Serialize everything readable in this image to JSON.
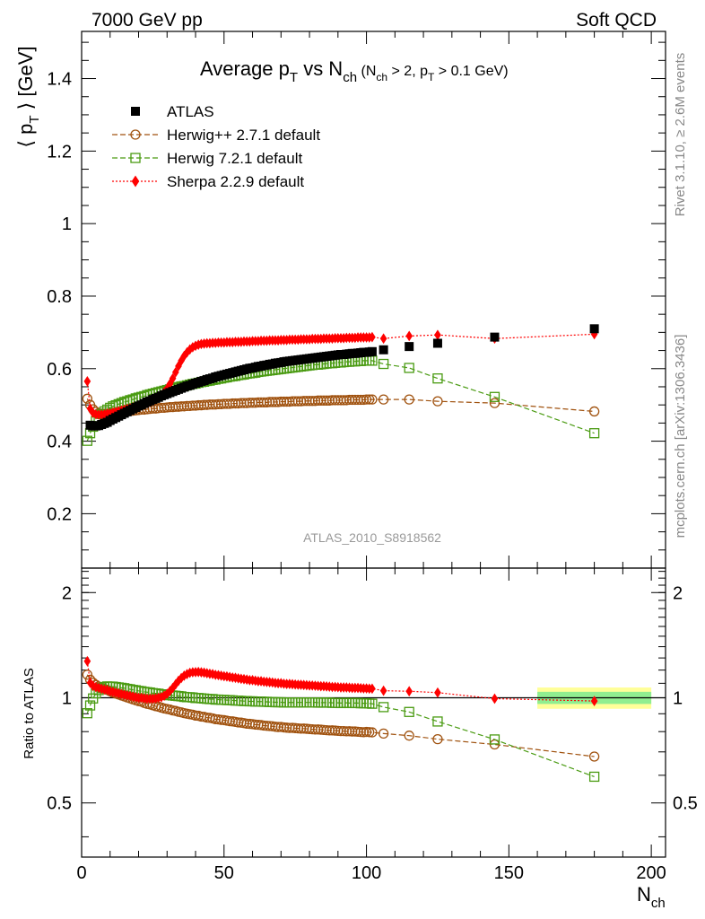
{
  "header": {
    "left": "7000 GeV pp",
    "right": "Soft QCD"
  },
  "side": {
    "rivet": "Rivet 3.1.10, ≥ 2.6M events",
    "mcplots": "mcplots.cern.ch [arXiv:1306.3436]"
  },
  "chart_data": [
    {
      "type": "scatter",
      "panel": "main",
      "title": {
        "main": "Average p",
        "main_sub": "T",
        "mid": " vs N",
        "mid_sub": "ch",
        "cond_open": " (N",
        "cond_sub1": "ch",
        "cond_mid": " > 2, p",
        "cond_sub2": "T",
        "cond_close": " > 0.1 GeV)"
      },
      "ylabel": {
        "pre": "⟨ p",
        "sub": "T",
        "post": " ⟩ [GeV]"
      },
      "watermark": "ATLAS_2010_S8918562",
      "xlim": [
        0,
        205
      ],
      "ylim": [
        0.05,
        1.53
      ],
      "yticks": [
        0.2,
        0.4,
        0.6,
        0.8,
        1,
        1.2,
        1.4
      ],
      "ytick_labels": [
        "0.2",
        "0.4",
        "0.6",
        "0.8",
        "1",
        "1.2",
        "1.4"
      ],
      "legend_position": "top-left",
      "series": [
        {
          "name": "ATLAS",
          "marker": "filled-square",
          "color": "#000000",
          "x": [
            3,
            4,
            5,
            6,
            7,
            8,
            9,
            10,
            11,
            12,
            13,
            14,
            15,
            16,
            17,
            18,
            19,
            20,
            21,
            22,
            23,
            24,
            25,
            26,
            27,
            28,
            29,
            30,
            31,
            32,
            33,
            34,
            35,
            36,
            37,
            38,
            39,
            40,
            41,
            42,
            43,
            44,
            45,
            46,
            47,
            48,
            49,
            50,
            51,
            52,
            53,
            54,
            55,
            56,
            57,
            58,
            59,
            60,
            61,
            62,
            63,
            64,
            65,
            66,
            67,
            68,
            69,
            70,
            71,
            72,
            73,
            74,
            75,
            76,
            77,
            78,
            79,
            80,
            81,
            82,
            83,
            84,
            85,
            86,
            87,
            88,
            89,
            90,
            91,
            92,
            93,
            94,
            95,
            96,
            97,
            98,
            99,
            100,
            101,
            102,
            106,
            115,
            125,
            145,
            180
          ],
          "y": [
            0.444,
            0.442,
            0.442,
            0.443,
            0.446,
            0.449,
            0.452,
            0.457,
            0.461,
            0.465,
            0.469,
            0.473,
            0.477,
            0.481,
            0.485,
            0.489,
            0.493,
            0.497,
            0.5,
            0.504,
            0.508,
            0.511,
            0.515,
            0.518,
            0.521,
            0.525,
            0.528,
            0.531,
            0.534,
            0.537,
            0.54,
            0.543,
            0.546,
            0.549,
            0.552,
            0.554,
            0.557,
            0.56,
            0.562,
            0.565,
            0.567,
            0.57,
            0.572,
            0.574,
            0.577,
            0.579,
            0.581,
            0.583,
            0.585,
            0.587,
            0.589,
            0.591,
            0.593,
            0.595,
            0.597,
            0.599,
            0.601,
            0.602,
            0.604,
            0.606,
            0.607,
            0.609,
            0.61,
            0.612,
            0.613,
            0.615,
            0.616,
            0.617,
            0.619,
            0.62,
            0.621,
            0.622,
            0.623,
            0.624,
            0.625,
            0.626,
            0.627,
            0.628,
            0.629,
            0.63,
            0.631,
            0.632,
            0.633,
            0.634,
            0.635,
            0.636,
            0.637,
            0.638,
            0.639,
            0.639,
            0.64,
            0.641,
            0.642,
            0.642,
            0.643,
            0.644,
            0.645,
            0.645,
            0.646,
            0.647,
            0.652,
            0.661,
            0.67,
            0.687,
            0.71
          ]
        },
        {
          "name": "Herwig++ 2.7.1 default",
          "marker": "open-circle",
          "color": "#a0520f",
          "dash": "6,3",
          "x": [
            2,
            3,
            4,
            5,
            6,
            7,
            8,
            9,
            10,
            11,
            12,
            13,
            14,
            15,
            16,
            17,
            18,
            19,
            20,
            21,
            22,
            23,
            24,
            25,
            26,
            27,
            28,
            29,
            30,
            31,
            32,
            33,
            34,
            35,
            36,
            37,
            38,
            39,
            40,
            41,
            42,
            43,
            44,
            45,
            46,
            47,
            48,
            49,
            50,
            51,
            52,
            53,
            54,
            55,
            56,
            57,
            58,
            59,
            60,
            61,
            62,
            63,
            64,
            65,
            66,
            67,
            68,
            69,
            70,
            71,
            72,
            73,
            74,
            75,
            76,
            77,
            78,
            79,
            80,
            81,
            82,
            83,
            84,
            85,
            86,
            87,
            88,
            89,
            90,
            91,
            92,
            93,
            94,
            95,
            96,
            97,
            98,
            99,
            100,
            101,
            102,
            106,
            115,
            125,
            145,
            180
          ],
          "y": [
            0.517,
            0.5,
            0.488,
            0.481,
            0.477,
            0.476,
            0.476,
            0.476,
            0.477,
            0.477,
            0.478,
            0.479,
            0.48,
            0.481,
            0.482,
            0.483,
            0.484,
            0.485,
            0.486,
            0.487,
            0.487,
            0.488,
            0.489,
            0.49,
            0.49,
            0.491,
            0.492,
            0.492,
            0.493,
            0.494,
            0.494,
            0.495,
            0.495,
            0.496,
            0.496,
            0.497,
            0.497,
            0.498,
            0.498,
            0.499,
            0.499,
            0.5,
            0.5,
            0.501,
            0.501,
            0.501,
            0.502,
            0.502,
            0.503,
            0.503,
            0.503,
            0.504,
            0.504,
            0.504,
            0.505,
            0.505,
            0.505,
            0.506,
            0.506,
            0.506,
            0.507,
            0.507,
            0.507,
            0.507,
            0.508,
            0.508,
            0.508,
            0.508,
            0.509,
            0.509,
            0.509,
            0.509,
            0.51,
            0.51,
            0.51,
            0.51,
            0.511,
            0.511,
            0.511,
            0.511,
            0.511,
            0.512,
            0.512,
            0.512,
            0.512,
            0.512,
            0.513,
            0.513,
            0.513,
            0.513,
            0.513,
            0.513,
            0.514,
            0.514,
            0.514,
            0.514,
            0.514,
            0.514,
            0.515,
            0.515,
            0.515,
            0.515,
            0.515,
            0.51,
            0.505,
            0.482
          ]
        },
        {
          "name": "Herwig 7.2.1 default",
          "marker": "open-square",
          "color": "#4a9b12",
          "dash": "6,3",
          "x": [
            2,
            3,
            4,
            5,
            6,
            7,
            8,
            9,
            10,
            11,
            12,
            13,
            14,
            15,
            16,
            17,
            18,
            19,
            20,
            21,
            22,
            23,
            24,
            25,
            26,
            27,
            28,
            29,
            30,
            31,
            32,
            33,
            34,
            35,
            36,
            37,
            38,
            39,
            40,
            41,
            42,
            43,
            44,
            45,
            46,
            47,
            48,
            49,
            50,
            51,
            52,
            53,
            54,
            55,
            56,
            57,
            58,
            59,
            60,
            61,
            62,
            63,
            64,
            65,
            66,
            67,
            68,
            69,
            70,
            71,
            72,
            73,
            74,
            75,
            76,
            77,
            78,
            79,
            80,
            81,
            82,
            83,
            84,
            85,
            86,
            87,
            88,
            89,
            90,
            91,
            92,
            93,
            94,
            95,
            96,
            97,
            98,
            99,
            100,
            101,
            102,
            106,
            115,
            125,
            145,
            180
          ],
          "y": [
            0.401,
            0.422,
            0.44,
            0.455,
            0.466,
            0.475,
            0.482,
            0.487,
            0.492,
            0.496,
            0.499,
            0.502,
            0.505,
            0.508,
            0.51,
            0.513,
            0.515,
            0.518,
            0.52,
            0.522,
            0.524,
            0.527,
            0.529,
            0.531,
            0.533,
            0.535,
            0.537,
            0.539,
            0.541,
            0.543,
            0.545,
            0.547,
            0.549,
            0.551,
            0.552,
            0.554,
            0.556,
            0.558,
            0.559,
            0.561,
            0.563,
            0.564,
            0.566,
            0.567,
            0.569,
            0.57,
            0.572,
            0.573,
            0.575,
            0.576,
            0.578,
            0.579,
            0.58,
            0.582,
            0.583,
            0.584,
            0.586,
            0.587,
            0.588,
            0.589,
            0.591,
            0.592,
            0.593,
            0.594,
            0.595,
            0.596,
            0.597,
            0.598,
            0.599,
            0.6,
            0.601,
            0.602,
            0.603,
            0.604,
            0.605,
            0.606,
            0.607,
            0.608,
            0.609,
            0.61,
            0.611,
            0.611,
            0.612,
            0.613,
            0.614,
            0.615,
            0.615,
            0.616,
            0.617,
            0.617,
            0.618,
            0.619,
            0.619,
            0.62,
            0.62,
            0.621,
            0.621,
            0.622,
            0.622,
            0.622,
            0.622,
            0.613,
            0.602,
            0.573,
            0.522,
            0.422
          ]
        },
        {
          "name": "Sherpa 2.2.9 default",
          "marker": "filled-diamond",
          "color": "#ff0000",
          "dash": "2,2",
          "x": [
            2,
            3,
            4,
            5,
            6,
            7,
            8,
            9,
            10,
            11,
            12,
            13,
            14,
            15,
            16,
            17,
            18,
            19,
            20,
            21,
            22,
            23,
            24,
            25,
            26,
            27,
            28,
            29,
            30,
            31,
            32,
            33,
            34,
            35,
            36,
            37,
            38,
            39,
            40,
            41,
            42,
            43,
            44,
            45,
            46,
            47,
            48,
            49,
            50,
            51,
            52,
            53,
            54,
            55,
            56,
            57,
            58,
            59,
            60,
            61,
            62,
            63,
            64,
            65,
            66,
            67,
            68,
            69,
            70,
            71,
            72,
            73,
            74,
            75,
            76,
            77,
            78,
            79,
            80,
            81,
            82,
            83,
            84,
            85,
            86,
            87,
            88,
            89,
            90,
            91,
            92,
            93,
            94,
            95,
            96,
            97,
            98,
            99,
            100,
            101,
            102,
            106,
            115,
            125,
            145,
            180
          ],
          "y": [
            0.565,
            0.49,
            0.478,
            0.474,
            0.473,
            0.473,
            0.474,
            0.476,
            0.477,
            0.479,
            0.481,
            0.483,
            0.485,
            0.487,
            0.489,
            0.491,
            0.493,
            0.495,
            0.497,
            0.5,
            0.502,
            0.505,
            0.508,
            0.512,
            0.516,
            0.521,
            0.527,
            0.535,
            0.545,
            0.558,
            0.573,
            0.59,
            0.607,
            0.622,
            0.635,
            0.645,
            0.653,
            0.659,
            0.663,
            0.666,
            0.668,
            0.669,
            0.67,
            0.67,
            0.671,
            0.671,
            0.672,
            0.672,
            0.672,
            0.673,
            0.673,
            0.673,
            0.674,
            0.674,
            0.674,
            0.675,
            0.675,
            0.675,
            0.676,
            0.676,
            0.676,
            0.677,
            0.677,
            0.677,
            0.678,
            0.678,
            0.678,
            0.678,
            0.679,
            0.679,
            0.679,
            0.68,
            0.68,
            0.68,
            0.68,
            0.681,
            0.681,
            0.681,
            0.681,
            0.682,
            0.682,
            0.682,
            0.682,
            0.683,
            0.683,
            0.683,
            0.683,
            0.684,
            0.684,
            0.684,
            0.684,
            0.685,
            0.685,
            0.685,
            0.685,
            0.686,
            0.686,
            0.686,
            0.686,
            0.686,
            0.687,
            0.683,
            0.69,
            0.693,
            0.683,
            0.695
          ]
        }
      ]
    },
    {
      "type": "scatter",
      "panel": "ratio",
      "ylabel": "Ratio to ATLAS",
      "xlabel": {
        "main": "N",
        "sub": "ch"
      },
      "xlim": [
        0,
        205
      ],
      "ylim": [
        0.35,
        2.35
      ],
      "xticks": [
        0,
        50,
        100,
        150,
        200
      ],
      "xtick_labels": [
        "0",
        "50",
        "100",
        "150",
        "200"
      ],
      "yticks": [
        0.5,
        1,
        2
      ],
      "ytick_labels": [
        "0.5",
        "1",
        "2"
      ],
      "reference_line": 1,
      "uncertainty_band": {
        "x_from": 160,
        "x_to": 200,
        "inner": [
          0.96,
          1.04
        ],
        "outer": [
          0.93,
          1.07
        ]
      },
      "series_ref": "ratio of each MC series to ATLAS"
    }
  ],
  "colors": {
    "frame": "#000000",
    "watermark": "#999999",
    "side_text": "#888888",
    "band_inner": "#90ee90",
    "band_outer": "#ffff99"
  }
}
